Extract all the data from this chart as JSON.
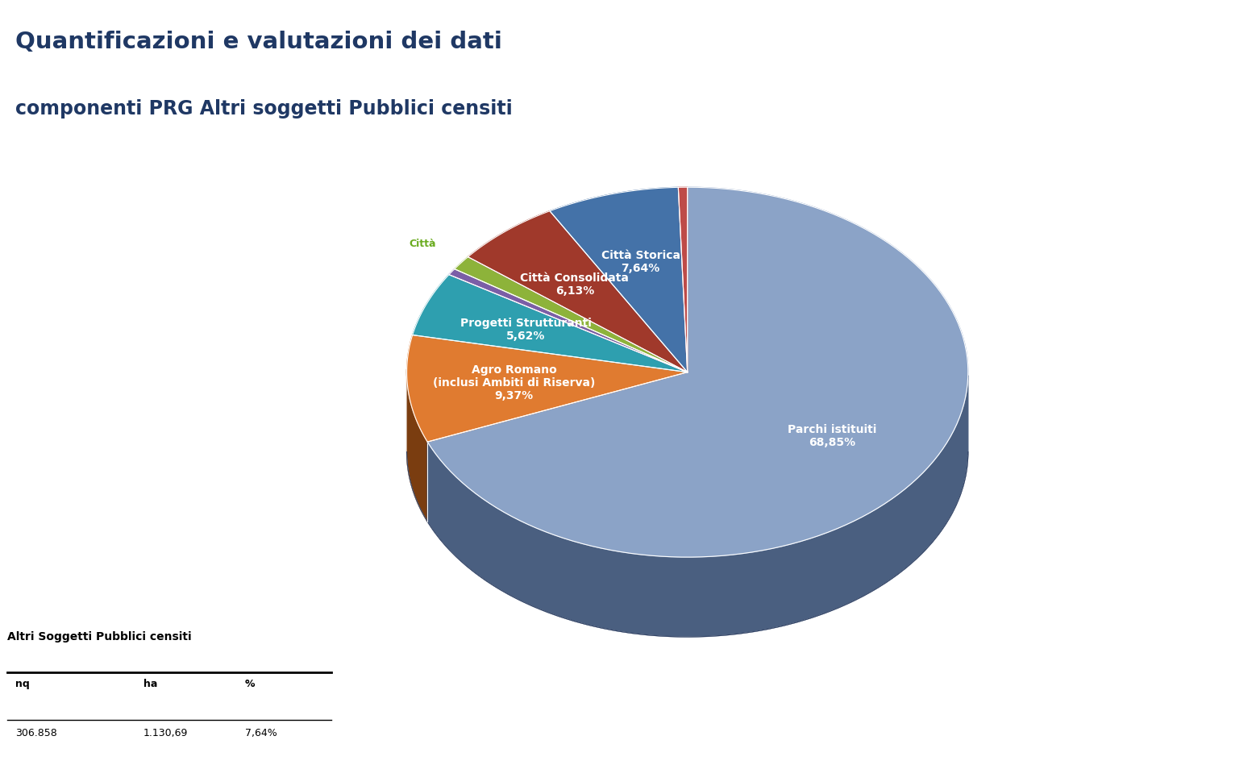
{
  "slices": [
    {
      "label": "Parchi istituiti\n68,85%",
      "pct": 68.85,
      "color": "#8ba3c7",
      "dark": "#4a5f80"
    },
    {
      "label": "Agro Romano\n(inclusi Ambiti di Riserva)\n9,37%",
      "pct": 9.37,
      "color": "#e07b30",
      "dark": "#7a3d10"
    },
    {
      "label": "Progetti Strutturanti\n5,62%",
      "pct": 5.62,
      "color": "#2e9faf",
      "dark": "#155a65"
    },
    {
      "label": "",
      "pct": 0.58,
      "color": "#7b5ea7",
      "dark": "#3d2a5a"
    },
    {
      "label": "Città",
      "pct": 1.29,
      "color": "#8db33a",
      "dark": "#4a6015",
      "outside": true
    },
    {
      "label": "Città Consolidata\n6,13%",
      "pct": 6.13,
      "color": "#a0392b",
      "dark": "#5a1a10"
    },
    {
      "label": "Città Storica\n7,64%",
      "pct": 7.64,
      "color": "#4472a8",
      "dark": "#1f3a60"
    },
    {
      "label": "",
      "pct": 0.52,
      "color": "#be4b48",
      "dark": "#6a2020"
    }
  ],
  "title_line1": "Quantificazioni e valutazioni dei dati",
  "title_line2": "componenti PRG Altri soggetti Pubblici censiti",
  "title_color": "#1f3864",
  "background_color": "#ffffff",
  "text_color_white": "#ffffff",
  "text_color_green": "#6aab1f",
  "table_title": "Altri Soggetti Pubblici censiti",
  "table_headers": [
    "nq",
    "ha",
    "%"
  ],
  "table_row": [
    "306.858",
    "1.130,69",
    "7,64%"
  ]
}
